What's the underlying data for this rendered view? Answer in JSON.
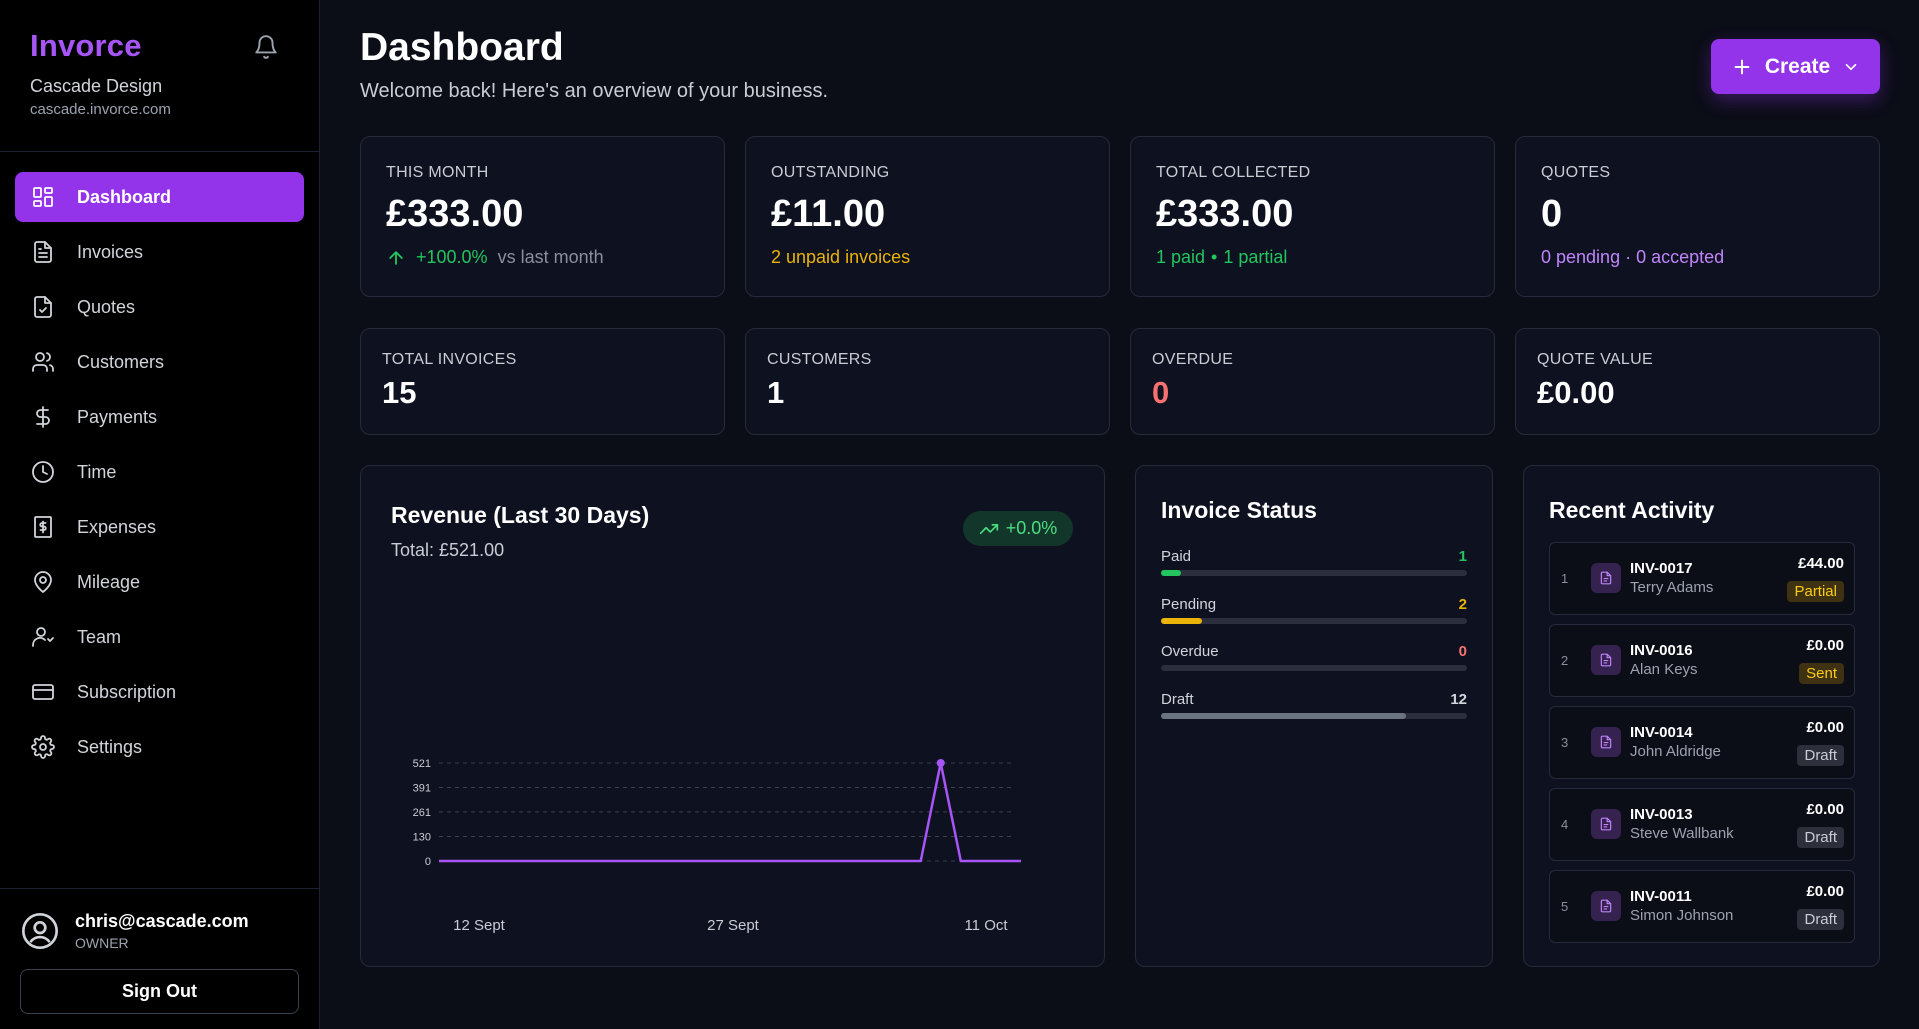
{
  "sidebar": {
    "brand": "Invorce",
    "company": "Cascade Design",
    "domain": "cascade.invorce.com",
    "items": [
      {
        "label": "Dashboard",
        "icon": "dashboard-icon",
        "active": true
      },
      {
        "label": "Invoices",
        "icon": "file-text-icon"
      },
      {
        "label": "Quotes",
        "icon": "file-check-icon"
      },
      {
        "label": "Customers",
        "icon": "users-icon"
      },
      {
        "label": "Payments",
        "icon": "dollar-icon"
      },
      {
        "label": "Time",
        "icon": "clock-icon"
      },
      {
        "label": "Expenses",
        "icon": "receipt-icon"
      },
      {
        "label": "Mileage",
        "icon": "map-pin-icon"
      },
      {
        "label": "Team",
        "icon": "team-icon"
      },
      {
        "label": "Subscription",
        "icon": "credit-card-icon"
      },
      {
        "label": "Settings",
        "icon": "gear-icon"
      }
    ],
    "user": {
      "email": "chris@cascade.com",
      "role": "OWNER"
    },
    "sign_out": "Sign Out"
  },
  "header": {
    "title": "Dashboard",
    "subtitle": "Welcome back! Here's an overview of your business.",
    "create_label": "Create"
  },
  "stats": {
    "this_month": {
      "label": "THIS MONTH",
      "value": "£333.00",
      "change": "+100.0%",
      "change_note": "vs last month"
    },
    "outstanding": {
      "label": "OUTSTANDING",
      "value": "£11.00",
      "sub": "2 unpaid invoices"
    },
    "total_collected": {
      "label": "TOTAL COLLECTED",
      "value": "£333.00",
      "sub_paid": "1 paid",
      "sub_sep": "•",
      "sub_partial": "1 partial"
    },
    "quotes": {
      "label": "QUOTES",
      "value": "0",
      "sub": "0 pending · 0 accepted"
    }
  },
  "mini_stats": {
    "total_invoices": {
      "label": "TOTAL INVOICES",
      "value": "15"
    },
    "customers": {
      "label": "CUSTOMERS",
      "value": "1"
    },
    "overdue": {
      "label": "OVERDUE",
      "value": "0"
    },
    "quote_value": {
      "label": "QUOTE VALUE",
      "value": "£0.00"
    }
  },
  "revenue": {
    "title": "Revenue (Last 30 Days)",
    "total": "Total: £521.00",
    "trend": "+0.0%"
  },
  "chart_data": {
    "type": "line",
    "title": "Revenue (Last 30 Days)",
    "x_labels": [
      "12 Sept",
      "27 Sept",
      "11 Oct"
    ],
    "y_ticks": [
      0,
      130,
      261,
      391,
      521
    ],
    "ylim": [
      0,
      521
    ],
    "grid": true,
    "points": [
      0,
      0,
      0,
      0,
      0,
      0,
      0,
      0,
      0,
      0,
      0,
      0,
      0,
      0,
      0,
      0,
      0,
      0,
      0,
      0,
      0,
      0,
      0,
      0,
      0,
      521,
      0,
      0,
      0,
      0
    ],
    "color": "#a855f7"
  },
  "invoice_status": {
    "title": "Invoice Status",
    "rows": [
      {
        "label": "Paid",
        "count": "1",
        "fraction": 0.0667,
        "color": "#22c55e"
      },
      {
        "label": "Pending",
        "count": "2",
        "fraction": 0.1333,
        "color": "#eab308"
      },
      {
        "label": "Overdue",
        "count": "0",
        "fraction": 0,
        "color": "#f87171"
      },
      {
        "label": "Draft",
        "count": "12",
        "fraction": 0.8,
        "color": "#6b7280"
      }
    ]
  },
  "activity": {
    "title": "Recent Activity",
    "items": [
      {
        "idx": "1",
        "number": "INV-0017",
        "customer": "Terry Adams",
        "amount": "£44.00",
        "status": "Partial"
      },
      {
        "idx": "2",
        "number": "INV-0016",
        "customer": "Alan Keys",
        "amount": "£0.00",
        "status": "Sent"
      },
      {
        "idx": "3",
        "number": "INV-0014",
        "customer": "John Aldridge",
        "amount": "£0.00",
        "status": "Draft"
      },
      {
        "idx": "4",
        "number": "INV-0013",
        "customer": "Steve Wallbank",
        "amount": "£0.00",
        "status": "Draft"
      },
      {
        "idx": "5",
        "number": "INV-0011",
        "customer": "Simon Johnson",
        "amount": "£0.00",
        "status": "Draft"
      }
    ]
  },
  "colors": {
    "accent": "#9333ea",
    "positive": "#22c55e",
    "warning": "#eab308",
    "danger": "#f87171",
    "quote": "#c084fc"
  }
}
